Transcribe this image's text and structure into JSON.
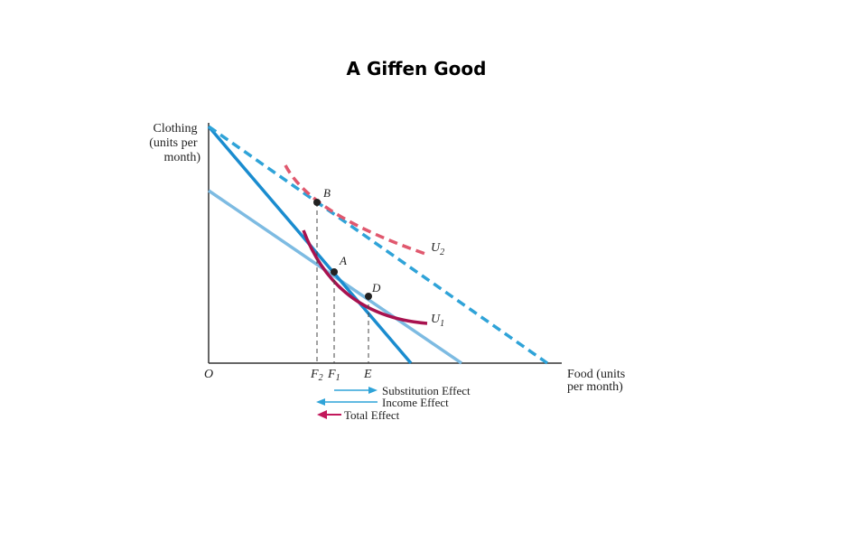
{
  "title": "A Giffen Good",
  "axes": {
    "y_label_lines": [
      "Clothing",
      "(units per",
      "month)"
    ],
    "x_label_lines": [
      "Food (units",
      "per month)"
    ],
    "origin": "O"
  },
  "points": {
    "a": "A",
    "b": "B",
    "d": "D"
  },
  "curves": {
    "u1": {
      "base": "U",
      "sub": "1"
    },
    "u2": {
      "base": "U",
      "sub": "2"
    }
  },
  "ticks": {
    "f2": {
      "base": "F",
      "sub": "2"
    },
    "f1": {
      "base": "F",
      "sub": "1"
    },
    "e": "E"
  },
  "legend": [
    {
      "label": "Substitution Effect",
      "color": "#2fa3d8"
    },
    {
      "label": "Income Effect",
      "color": "#2fa3d8"
    },
    {
      "label": "Total Effect",
      "color": "#c2185b"
    }
  ],
  "colors": {
    "budget_original": "#1a8ccf",
    "budget_new": "#2fa3d8",
    "budget_parallel": "#7dbbe2",
    "u1": "#a8124f",
    "u2": "#e0586e"
  }
}
